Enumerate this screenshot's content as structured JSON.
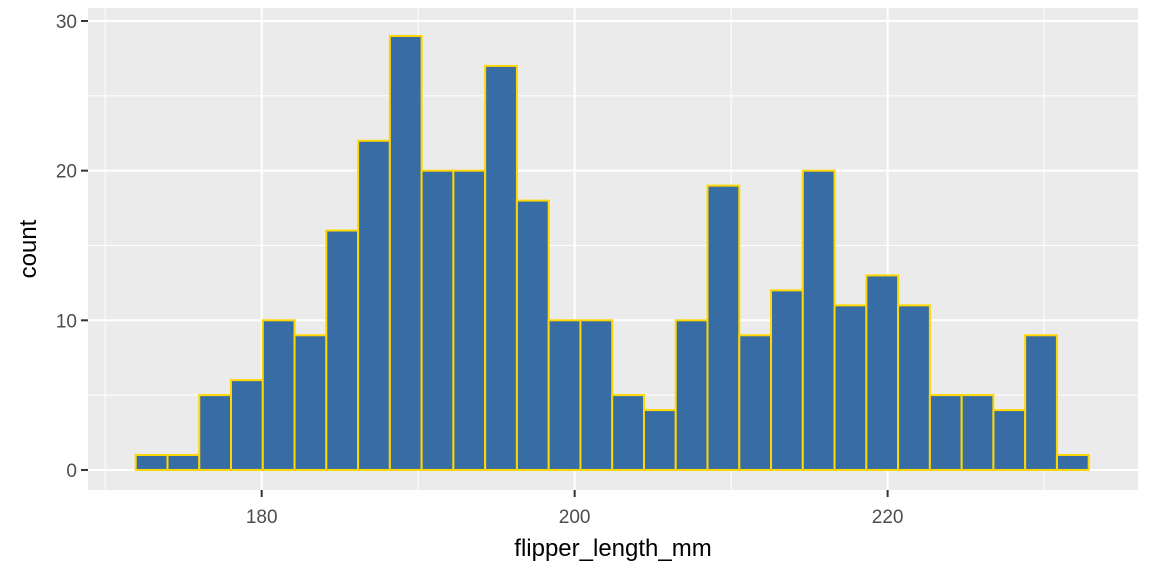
{
  "chart_data": {
    "type": "histogram",
    "x_label": "flipper_length_mm",
    "y_label": "count",
    "bins": [
      171.95,
      173.98,
      176.01,
      178.04,
      180.07,
      182.1,
      184.13,
      186.16,
      188.19,
      190.22,
      192.25,
      194.28,
      196.31,
      198.34,
      200.37,
      202.4,
      204.43,
      206.46,
      208.49,
      210.52,
      212.55,
      214.58,
      216.61,
      218.64,
      220.67,
      222.7,
      224.73,
      226.76,
      228.79,
      230.82,
      232.85
    ],
    "counts": [
      1,
      1,
      5,
      6,
      10,
      9,
      16,
      22,
      29,
      20,
      20,
      27,
      18,
      10,
      10,
      5,
      4,
      10,
      19,
      9,
      12,
      20,
      11,
      13,
      11,
      5,
      5,
      4,
      9,
      1
    ],
    "color": "#386ca5",
    "edge_color": "#ffd700",
    "xlim": [
      168.9,
      236.0
    ],
    "xticks": [
      180,
      200,
      220
    ],
    "ylim": [
      -1.34,
      30.87
    ],
    "yticks": [
      0,
      10,
      20,
      30
    ],
    "grid": true
  }
}
